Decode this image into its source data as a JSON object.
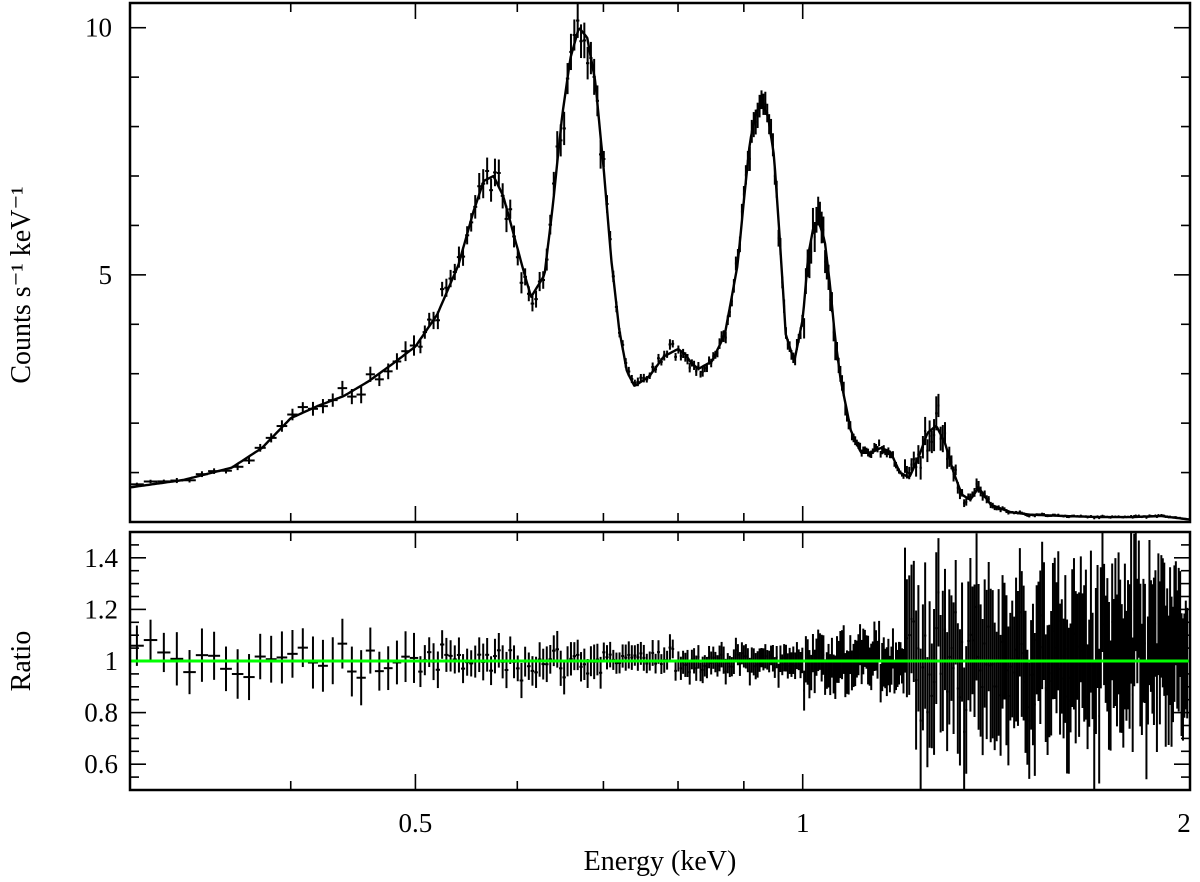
{
  "chart_data": [
    {
      "panel": "spectrum",
      "type": "line",
      "xlabel": "Energy (keV)",
      "ylabel": "Counts s⁻¹ keV⁻¹",
      "xscale": "log",
      "xlim": [
        0.3,
        2.0
      ],
      "ylim": [
        0.0,
        10.5
      ],
      "yticks": [
        {
          "value": 5,
          "label": "5"
        },
        {
          "value": 10,
          "label": "10"
        }
      ],
      "series": [
        {
          "kind": "model",
          "color": "#000000",
          "x": [
            0.3,
            0.33,
            0.36,
            0.38,
            0.4,
            0.42,
            0.44,
            0.46,
            0.48,
            0.5,
            0.52,
            0.54,
            0.555,
            0.565,
            0.575,
            0.585,
            0.595,
            0.605,
            0.615,
            0.63,
            0.64,
            0.65,
            0.66,
            0.67,
            0.68,
            0.69,
            0.7,
            0.71,
            0.72,
            0.73,
            0.74,
            0.76,
            0.78,
            0.8,
            0.81,
            0.82,
            0.83,
            0.85,
            0.87,
            0.89,
            0.9,
            0.91,
            0.92,
            0.93,
            0.94,
            0.95,
            0.96,
            0.97,
            0.985,
            1.0,
            1.01,
            1.02,
            1.03,
            1.04,
            1.05,
            1.06,
            1.07,
            1.09,
            1.11,
            1.13,
            1.15,
            1.17,
            1.19,
            1.21,
            1.23,
            1.25,
            1.27,
            1.29,
            1.31,
            1.33,
            1.35,
            1.37,
            1.4,
            1.45,
            1.5,
            1.6,
            1.7,
            1.8,
            1.9,
            2.0
          ],
          "y": [
            0.7,
            0.85,
            1.1,
            1.5,
            2.1,
            2.35,
            2.55,
            2.85,
            3.2,
            3.55,
            4.2,
            5.2,
            6.3,
            6.9,
            7.0,
            6.6,
            5.9,
            5.2,
            4.55,
            5.0,
            6.5,
            8.2,
            9.4,
            10.0,
            9.8,
            8.9,
            7.2,
            5.3,
            3.9,
            3.05,
            2.75,
            2.95,
            3.35,
            3.5,
            3.4,
            3.2,
            3.1,
            3.25,
            3.8,
            5.2,
            6.5,
            7.7,
            8.3,
            8.45,
            8.2,
            7.4,
            5.7,
            3.8,
            3.25,
            4.1,
            5.4,
            6.0,
            6.05,
            5.7,
            4.8,
            3.7,
            2.9,
            1.85,
            1.4,
            1.4,
            1.5,
            1.42,
            1.0,
            0.9,
            1.3,
            1.8,
            1.95,
            1.6,
            1.0,
            0.55,
            0.45,
            0.7,
            0.35,
            0.2,
            0.15,
            0.12,
            0.1,
            0.1,
            0.12,
            0.05
          ]
        }
      ]
    },
    {
      "panel": "ratio",
      "type": "scatter",
      "xlabel": "Energy (keV)",
      "ylabel": "Ratio",
      "xscale": "log",
      "xlim": [
        0.3,
        2.0
      ],
      "ylim": [
        0.5,
        1.5
      ],
      "xticks": [
        {
          "value": 0.5,
          "label": "0.5"
        },
        {
          "value": 1,
          "label": "1"
        },
        {
          "value": 2,
          "label": "2"
        }
      ],
      "yticks": [
        {
          "value": 0.6,
          "label": "0.6"
        },
        {
          "value": 0.8,
          "label": "0.8"
        },
        {
          "value": 1,
          "label": "1"
        },
        {
          "value": 1.2,
          "label": "1.2"
        },
        {
          "value": 1.4,
          "label": "1.4"
        }
      ],
      "reference_line": {
        "y": 1.0,
        "color": "#00ff00"
      },
      "scatter_by_energy": [
        {
          "x_range": [
            0.3,
            0.5
          ],
          "sigma": 0.09
        },
        {
          "x_range": [
            0.5,
            0.7
          ],
          "sigma": 0.06
        },
        {
          "x_range": [
            0.7,
            1.0
          ],
          "sigma": 0.045
        },
        {
          "x_range": [
            1.0,
            1.2
          ],
          "sigma": 0.08
        },
        {
          "x_range": [
            1.2,
            2.0
          ],
          "sigma": 0.25
        }
      ]
    }
  ]
}
